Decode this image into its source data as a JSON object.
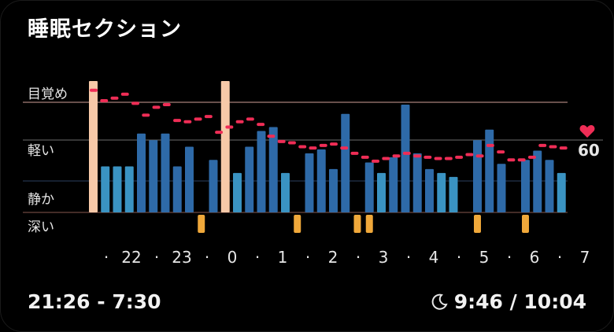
{
  "title": "睡眠セクション",
  "stages": {
    "awake": "目覚め",
    "light": "軽い",
    "rem": "静か",
    "deep": "深い"
  },
  "time_range": "21:26 - 7:30",
  "sleep_duration": "9:46 / 10:04",
  "heart_rate_label": "60",
  "icons": {
    "moon": "moon-icon",
    "heart": "heart-icon"
  },
  "colors": {
    "awake": "#f7c9a8",
    "light": "#2e6aa8",
    "rem": "#3a93c2",
    "deep": "#f0a83a",
    "heart_rate": "#ef2d56",
    "awake_line": "#8a6a66"
  },
  "chart_data": {
    "type": "bar",
    "ticks": [
      "·",
      "22",
      "·",
      "23",
      "·",
      "0",
      "·",
      "1",
      "·",
      "2",
      "·",
      "3",
      "·",
      "4",
      "·",
      "5",
      "·",
      "6",
      "·",
      "7"
    ],
    "segments": [
      {
        "stage": "awake",
        "level": 1.0
      },
      {
        "stage": "rem",
        "level": 0.35
      },
      {
        "stage": "rem",
        "level": 0.35
      },
      {
        "stage": "rem",
        "level": 0.35
      },
      {
        "stage": "light",
        "level": 0.6
      },
      {
        "stage": "light",
        "level": 0.55
      },
      {
        "stage": "light",
        "level": 0.6
      },
      {
        "stage": "light",
        "level": 0.35
      },
      {
        "stage": "light",
        "level": 0.5
      },
      {
        "stage": "none",
        "level": 0
      },
      {
        "stage": "light",
        "level": 0.4
      },
      {
        "stage": "awake",
        "level": 1.0
      },
      {
        "stage": "rem",
        "level": 0.3
      },
      {
        "stage": "light",
        "level": 0.5
      },
      {
        "stage": "light",
        "level": 0.62
      },
      {
        "stage": "light",
        "level": 0.65
      },
      {
        "stage": "rem",
        "level": 0.3
      },
      {
        "stage": "none",
        "level": 0
      },
      {
        "stage": "light",
        "level": 0.45
      },
      {
        "stage": "light",
        "level": 0.48
      },
      {
        "stage": "light",
        "level": 0.33
      },
      {
        "stage": "light",
        "level": 0.75
      },
      {
        "stage": "none",
        "level": 0
      },
      {
        "stage": "light",
        "level": 0.38
      },
      {
        "stage": "rem",
        "level": 0.3
      },
      {
        "stage": "light",
        "level": 0.42
      },
      {
        "stage": "light",
        "level": 0.82
      },
      {
        "stage": "light",
        "level": 0.45
      },
      {
        "stage": "light",
        "level": 0.33
      },
      {
        "stage": "rem",
        "level": 0.3
      },
      {
        "stage": "rem",
        "level": 0.27
      },
      {
        "stage": "none",
        "level": 0
      },
      {
        "stage": "light",
        "level": 0.55
      },
      {
        "stage": "light",
        "level": 0.63
      },
      {
        "stage": "light",
        "level": 0.37
      },
      {
        "stage": "none",
        "level": 0
      },
      {
        "stage": "light",
        "level": 0.4
      },
      {
        "stage": "light",
        "level": 0.47
      },
      {
        "stage": "light",
        "level": 0.4
      },
      {
        "stage": "rem",
        "level": 0.3
      }
    ],
    "deep_segments": [
      9,
      17,
      22,
      23,
      32,
      36
    ],
    "heart_rate_points": [
      0.93,
      0.85,
      0.87,
      0.9,
      0.83,
      0.74,
      0.8,
      0.82,
      0.7,
      0.69,
      0.71,
      0.73,
      0.61,
      0.65,
      0.69,
      0.71,
      0.67,
      0.58,
      0.54,
      0.53,
      0.5,
      0.49,
      0.51,
      0.52,
      0.49,
      0.45,
      0.42,
      0.39,
      0.41,
      0.43,
      0.45,
      0.43,
      0.42,
      0.41,
      0.41,
      0.42,
      0.44,
      0.43,
      0.51,
      0.46,
      0.4,
      0.4,
      0.42,
      0.51,
      0.5,
      0.49
    ]
  }
}
